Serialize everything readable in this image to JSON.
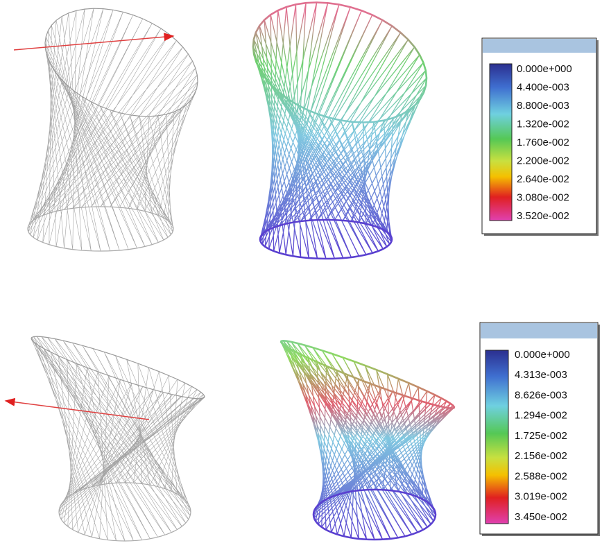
{
  "panels": [
    {
      "legend": {
        "labels": [
          "0.000e+000",
          "4.400e-003",
          "8.800e-003",
          "1.320e-002",
          "1.760e-002",
          "2.200e-002",
          "2.640e-002",
          "3.080e-002",
          "3.520e-002"
        ]
      }
    },
    {
      "legend": {
        "labels": [
          "0.000e+000",
          "4.313e-003",
          "8.626e-003",
          "1.294e-002",
          "1.725e-002",
          "2.156e-002",
          "2.588e-002",
          "3.019e-002",
          "3.450e-002"
        ]
      }
    }
  ]
}
